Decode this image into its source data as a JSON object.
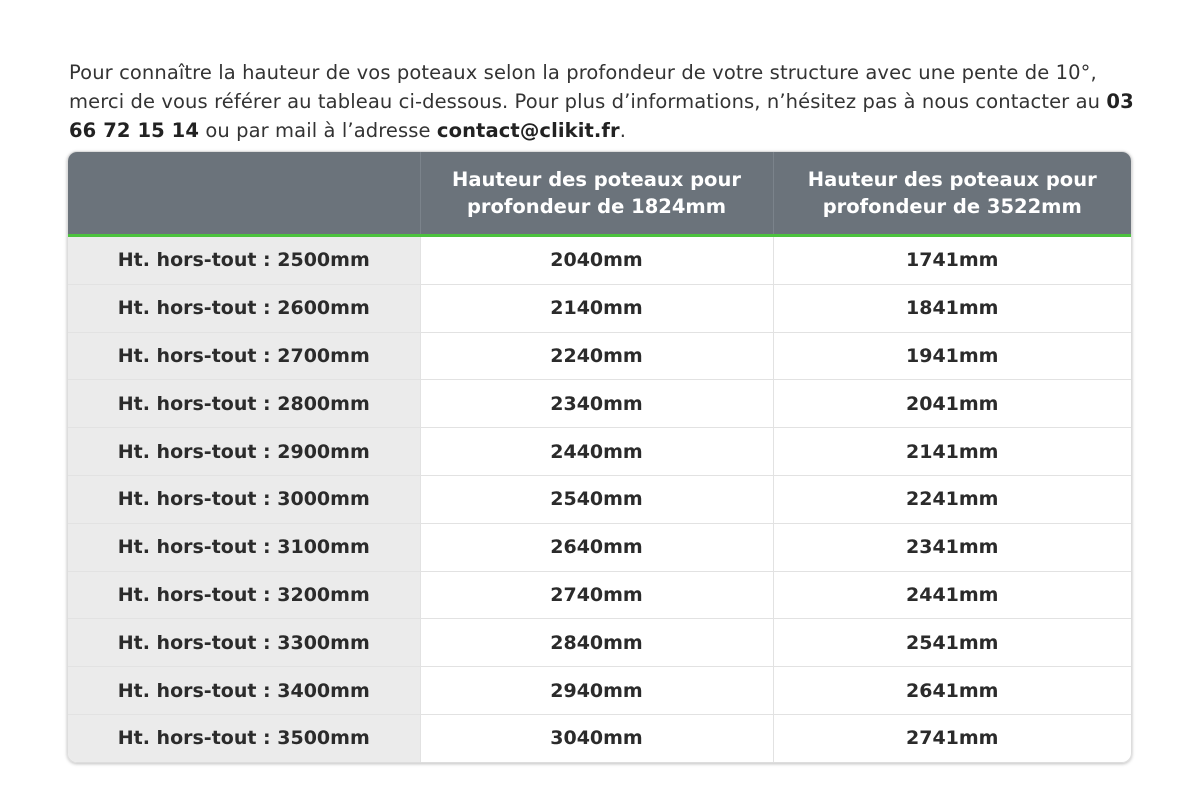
{
  "intro": {
    "text_before_phone": "Pour connaître la hauteur de vos poteaux selon la profondeur de votre structure avec une pente de 10°, merci de vous référer au tableau ci-dessous. Pour plus d’informations, n’hésitez pas à nous contacter au ",
    "phone": "03 66 72 15 14",
    "text_between": " ou par mail à l’adresse ",
    "email": "contact@clikit.fr",
    "text_after": "."
  },
  "table": {
    "headers": [
      "",
      "Hauteur des poteaux pour profondeur de 1824mm",
      "Hauteur des poteaux pour profondeur de 3522mm"
    ],
    "rows": [
      [
        "Ht. hors-tout : 2500mm",
        "2040mm",
        "1741mm"
      ],
      [
        "Ht. hors-tout : 2600mm",
        "2140mm",
        "1841mm"
      ],
      [
        "Ht. hors-tout : 2700mm",
        "2240mm",
        "1941mm"
      ],
      [
        "Ht. hors-tout : 2800mm",
        "2340mm",
        "2041mm"
      ],
      [
        "Ht. hors-tout : 2900mm",
        "2440mm",
        "2141mm"
      ],
      [
        "Ht. hors-tout : 3000mm",
        "2540mm",
        "2241mm"
      ],
      [
        "Ht. hors-tout : 3100mm",
        "2640mm",
        "2341mm"
      ],
      [
        "Ht. hors-tout : 3200mm",
        "2740mm",
        "2441mm"
      ],
      [
        "Ht. hors-tout : 3300mm",
        "2840mm",
        "2541mm"
      ],
      [
        "Ht. hors-tout : 3400mm",
        "2940mm",
        "2641mm"
      ],
      [
        "Ht. hors-tout : 3500mm",
        "3040mm",
        "2741mm"
      ]
    ]
  },
  "colors": {
    "header_bg": "#6b737b",
    "accent_green": "#4cc23e",
    "rowhead_bg": "#ebebeb"
  }
}
